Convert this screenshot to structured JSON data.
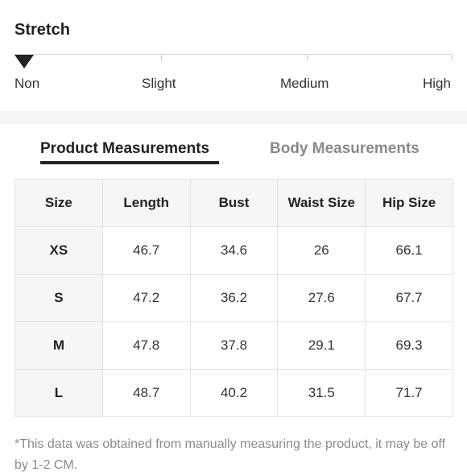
{
  "stretch": {
    "title": "Stretch",
    "levels": [
      "Non",
      "Slight",
      "Medium",
      "High"
    ],
    "selected": "Non"
  },
  "tabs": [
    {
      "label": "Product Measurements",
      "active": true
    },
    {
      "label": "Body Measurements",
      "active": false
    }
  ],
  "table": {
    "headers": [
      "Size",
      "Length",
      "Bust",
      "Waist Size",
      "Hip Size"
    ],
    "rows": [
      [
        "XS",
        "46.7",
        "34.6",
        "26",
        "66.1"
      ],
      [
        "S",
        "47.2",
        "36.2",
        "27.6",
        "67.7"
      ],
      [
        "M",
        "47.8",
        "37.8",
        "29.1",
        "69.3"
      ],
      [
        "L",
        "48.7",
        "40.2",
        "31.5",
        "71.7"
      ]
    ]
  },
  "note": "*This data was obtained from manually measuring the product, it may be off by 1-2 CM."
}
